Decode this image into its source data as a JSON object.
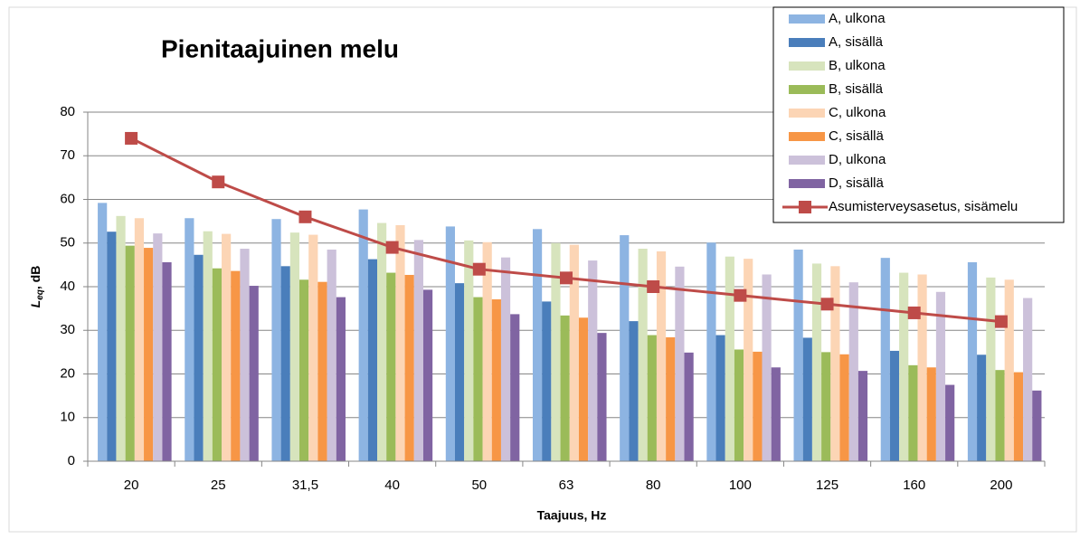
{
  "chart_data": {
    "type": "bar",
    "title": "Pienitaajuinen melu",
    "x_label": "Taajuus, Hz",
    "y_label": {
      "symbol": "L",
      "subscript": "eq",
      "unit": ", dB"
    },
    "categories": [
      "20",
      "25",
      "31,5",
      "40",
      "50",
      "63",
      "80",
      "100",
      "125",
      "160",
      "200"
    ],
    "ylim": [
      0,
      80
    ],
    "yticks": [
      0,
      10,
      20,
      30,
      40,
      50,
      60,
      70,
      80
    ],
    "grid": true,
    "legend": "top-right",
    "series": [
      {
        "name": "A, ulkona",
        "color": "#8db4e2",
        "values": [
          59.2,
          55.7,
          55.5,
          57.7,
          53.8,
          53.2,
          51.8,
          50.1,
          48.5,
          46.6,
          45.6
        ]
      },
      {
        "name": "A, sisällä",
        "color": "#4a7ebb",
        "values": [
          52.6,
          47.3,
          44.7,
          46.3,
          40.8,
          36.6,
          32.1,
          28.9,
          28.3,
          25.3,
          24.4
        ]
      },
      {
        "name": "B, ulkona",
        "color": "#d7e4bd",
        "values": [
          56.2,
          52.7,
          52.4,
          54.6,
          50.6,
          50.0,
          48.7,
          46.9,
          45.3,
          43.2,
          42.1
        ]
      },
      {
        "name": "B, sisällä",
        "color": "#9bbb59",
        "values": [
          49.4,
          44.2,
          41.6,
          43.2,
          37.6,
          33.4,
          28.9,
          25.6,
          25.0,
          22.0,
          20.9
        ]
      },
      {
        "name": "C, ulkona",
        "color": "#fcd5b5",
        "values": [
          55.7,
          52.1,
          51.9,
          54.1,
          50.2,
          49.6,
          48.1,
          46.4,
          44.7,
          42.8,
          41.6
        ]
      },
      {
        "name": "C, sisällä",
        "color": "#f79646",
        "values": [
          48.9,
          43.6,
          41.1,
          42.7,
          37.1,
          32.9,
          28.4,
          25.1,
          24.5,
          21.5,
          20.4
        ]
      },
      {
        "name": "D, ulkona",
        "color": "#ccc1da",
        "values": [
          52.2,
          48.7,
          48.5,
          50.7,
          46.7,
          46.0,
          44.6,
          42.8,
          41.0,
          38.8,
          37.4
        ]
      },
      {
        "name": "D, sisällä",
        "color": "#8064a2",
        "values": [
          45.6,
          40.2,
          37.6,
          39.3,
          33.7,
          29.4,
          24.9,
          21.5,
          20.7,
          17.5,
          16.2
        ]
      },
      {
        "name": "Asumisterveysasetus, sisämelu",
        "color": "#be4b48",
        "type": "line",
        "values": [
          74,
          64,
          56,
          49,
          44,
          42,
          40,
          38,
          36,
          34,
          32
        ]
      }
    ]
  }
}
